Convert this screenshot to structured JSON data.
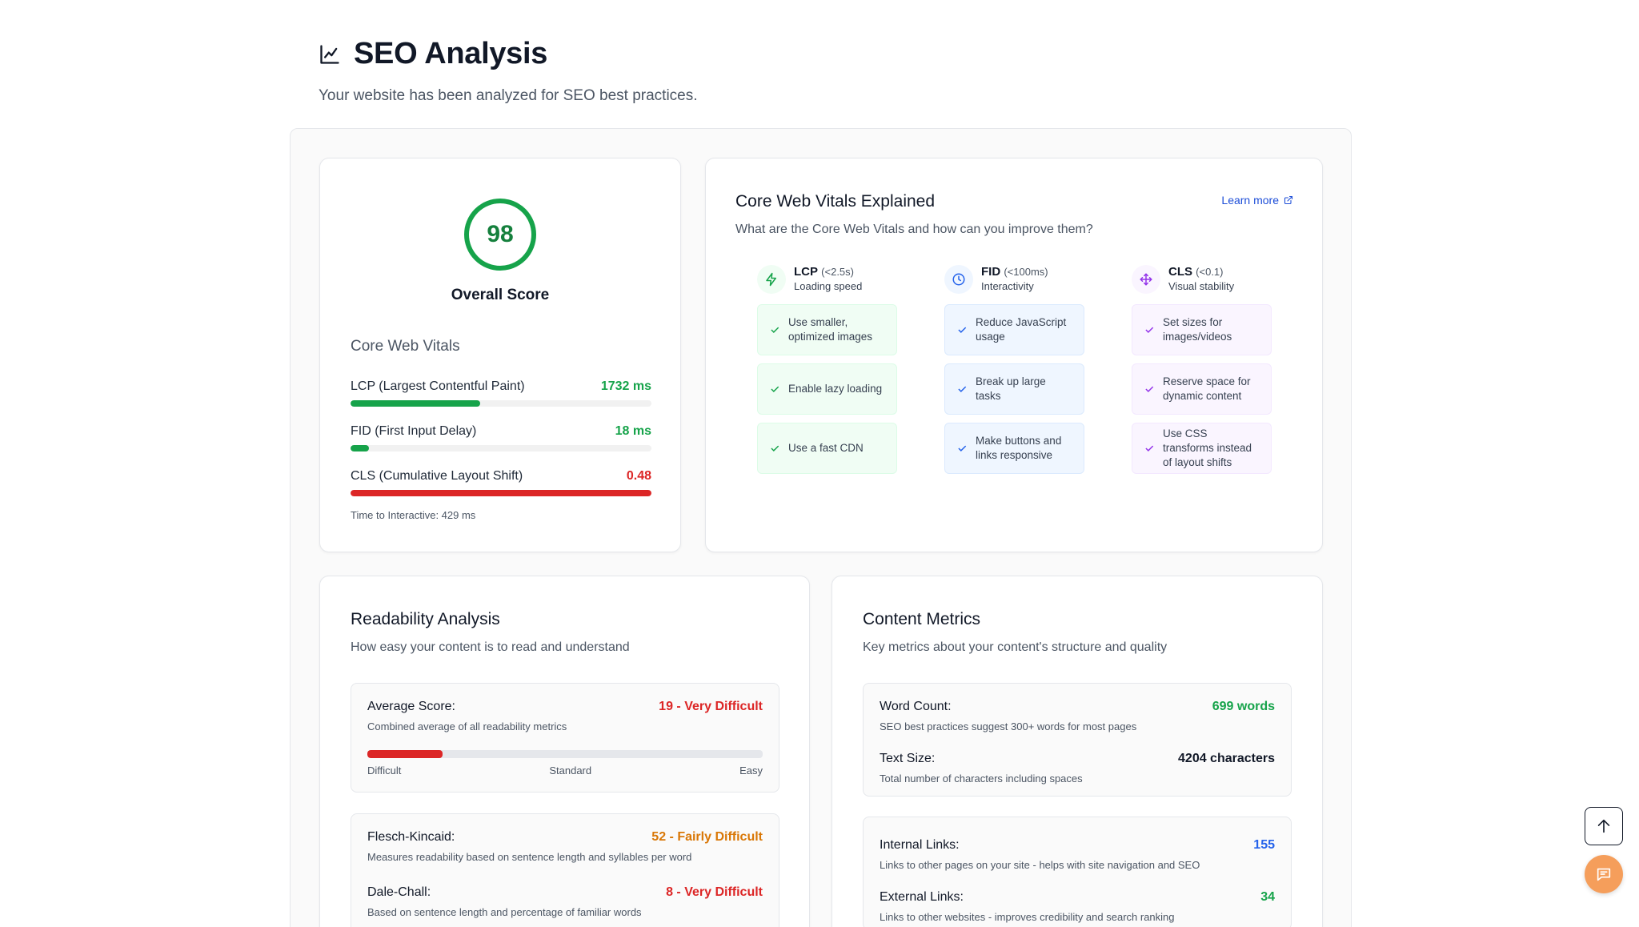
{
  "header": {
    "title": "SEO Analysis",
    "subtitle": "Your website has been analyzed for SEO best practices.",
    "icon": "line-chart-icon"
  },
  "score": {
    "value": "98",
    "label": "Overall Score",
    "color": "#16a34a"
  },
  "core_web_vitals": {
    "heading": "Core Web Vitals",
    "metrics": [
      {
        "name": "LCP (Largest Contentful Paint)",
        "value": "1732 ms",
        "fill_fraction": 0.43,
        "color": "#16a34a"
      },
      {
        "name": "FID (First Input Delay)",
        "value": "18 ms",
        "fill_fraction": 0.06,
        "color": "#16a34a"
      },
      {
        "name": "CLS (Cumulative Layout Shift)",
        "value": "0.48",
        "fill_fraction": 1.0,
        "color": "#dc2626"
      }
    ],
    "tti": "Time to Interactive: 429 ms"
  },
  "explained": {
    "title": "Core Web Vitals Explained",
    "subtitle": "What are the Core Web Vitals and how can you improve them?",
    "learn_more": "Learn more",
    "columns": [
      {
        "abbr": "LCP",
        "threshold": "(<2.5s)",
        "desc": "Loading speed",
        "icon": "lightning-icon",
        "color": "#16a34a",
        "tint": "#f0fdf4",
        "tips": [
          "Use smaller, optimized images",
          "Enable lazy loading",
          "Use a fast CDN"
        ]
      },
      {
        "abbr": "FID",
        "threshold": "(<100ms)",
        "desc": "Interactivity",
        "icon": "clock-icon",
        "color": "#2563eb",
        "tint": "#eff6ff",
        "tips": [
          "Reduce JavaScript usage",
          "Break up large tasks",
          "Make buttons and links responsive"
        ]
      },
      {
        "abbr": "CLS",
        "threshold": "(<0.1)",
        "desc": "Visual stability",
        "icon": "move-icon",
        "color": "#9333ea",
        "tint": "#faf5ff",
        "tips": [
          "Set sizes for images/videos",
          "Reserve space for dynamic content",
          "Use CSS transforms instead of layout shifts"
        ]
      }
    ]
  },
  "readability": {
    "title": "Readability Analysis",
    "subtitle": "How easy your content is to read and understand",
    "average": {
      "label": "Average Score:",
      "value": "19 - Very Difficult",
      "desc": "Combined average of all readability metrics",
      "fill_fraction": 0.19,
      "color": "#dc2626"
    },
    "scale": [
      "Difficult",
      "Standard",
      "Easy"
    ],
    "flesch": {
      "label": "Flesch-Kincaid:",
      "value": "52 - Fairly Difficult",
      "desc": "Measures readability based on sentence length and syllables per word",
      "color": "#d97706"
    },
    "dale": {
      "label": "Dale-Chall:",
      "value": "8 - Very Difficult",
      "desc": "Based on sentence length and percentage of familiar words",
      "color": "#dc2626"
    }
  },
  "content_metrics": {
    "title": "Content Metrics",
    "subtitle": "Key metrics about your content's structure and quality",
    "word_count": {
      "label": "Word Count:",
      "value": "699 words",
      "desc": "SEO best practices suggest 300+ words for most pages",
      "color": "#16a34a"
    },
    "text_size": {
      "label": "Text Size:",
      "value": "4204 characters",
      "desc": "Total number of characters including spaces",
      "color": "#111827"
    },
    "internal_links": {
      "label": "Internal Links:",
      "value": "155",
      "desc": "Links to other pages on your site - helps with site navigation and SEO",
      "color": "#2563eb"
    },
    "external_links": {
      "label": "External Links:",
      "value": "34",
      "desc": "Links to other websites - improves credibility and search ranking",
      "color": "#16a34a"
    }
  },
  "floating": {
    "scroll_top_icon": "arrow-up-icon",
    "chat_icon": "chat-icon"
  }
}
